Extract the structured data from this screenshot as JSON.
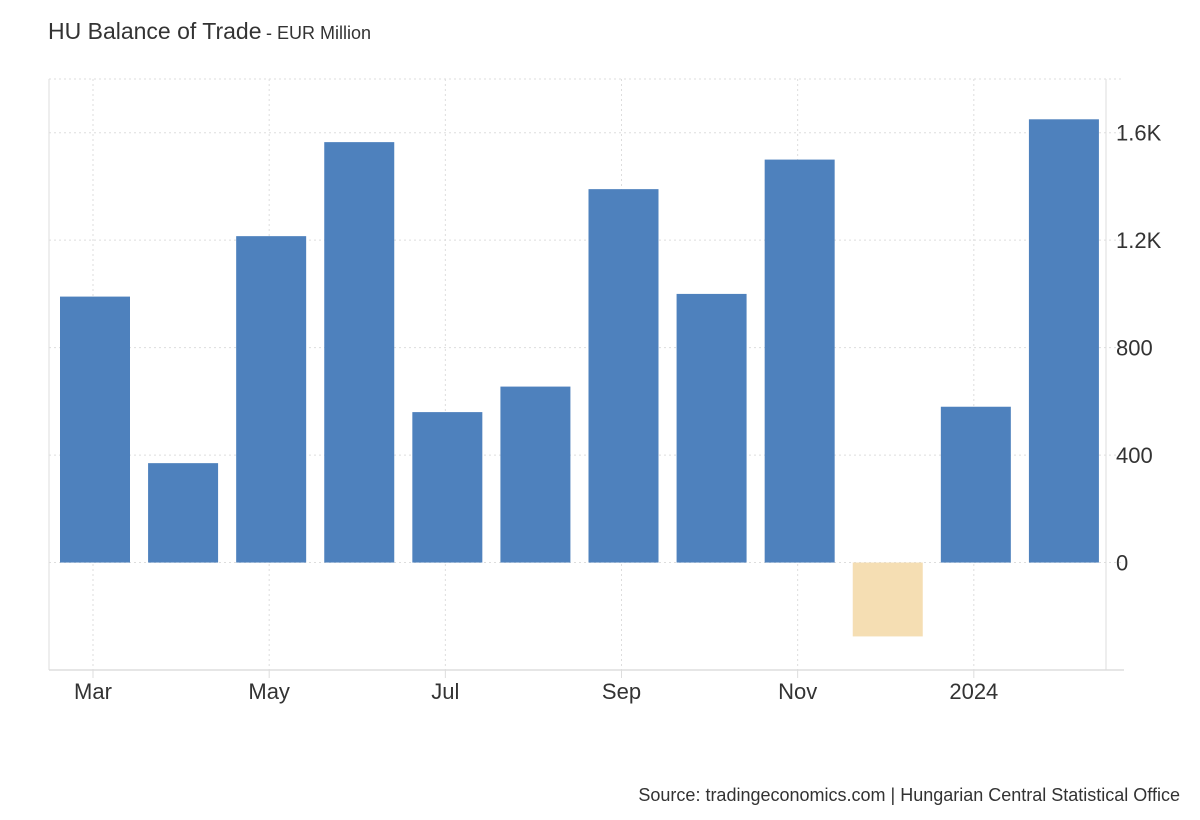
{
  "chart_data": {
    "type": "bar",
    "title": "HU Balance of Trade",
    "subtitle": "- EUR Million",
    "x_tick_labels": [
      "Mar",
      "May",
      "Jul",
      "Sep",
      "Nov",
      "2024"
    ],
    "y_tick_labels": [
      "0",
      "400",
      "800",
      "1.2K",
      "1.6K"
    ],
    "y_ticks": [
      0,
      400,
      800,
      1200,
      1600
    ],
    "ylim": [
      -400,
      1800
    ],
    "grid": true,
    "legend": "none",
    "y_axis_side": "right",
    "series": [
      {
        "values": [
          990,
          370,
          1215,
          1565,
          560,
          655,
          1390,
          1000,
          1500,
          -275,
          580,
          1650
        ]
      }
    ],
    "colors": {
      "positive": "#4e81bd",
      "negative": "#f5deb3",
      "grid": "#dddddd",
      "axis": "#dddddd"
    }
  },
  "source": "Source: tradingeconomics.com | Hungarian Central Statistical Office"
}
